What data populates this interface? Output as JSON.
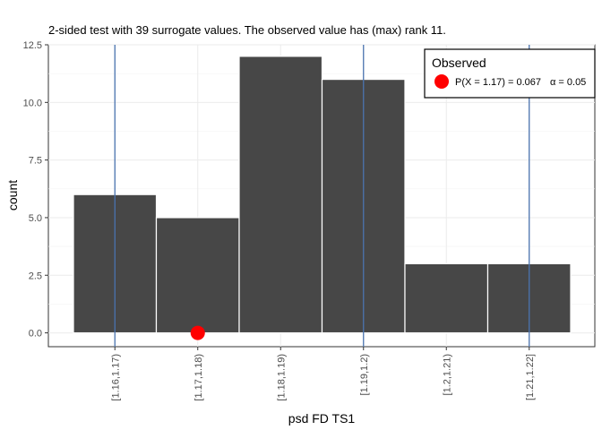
{
  "chart_data": {
    "type": "bar",
    "title": "2-sided test with 39 surrogate values. The observed value has (max) rank 11.",
    "xlabel": "psd FD TS1",
    "ylabel": "count",
    "categories": [
      "[1.16,1.17)",
      "[1.17,1.18)",
      "[1.18,1.19)",
      "[1.19,1.2)",
      "[1.2,1.21)",
      "[1.21,1.22]"
    ],
    "values": [
      6,
      5,
      12,
      11,
      3,
      3
    ],
    "ylim": [
      -0.6,
      12.5
    ],
    "yticks": [
      0.0,
      2.5,
      5.0,
      7.5,
      10.0,
      12.5
    ],
    "ytick_labels": [
      "0.0",
      "2.5",
      "5.0",
      "7.5",
      "10.0",
      "12.5"
    ],
    "bar_color": "#474747",
    "bar_edge_color": "#ffffff",
    "vertical_lines": {
      "color": "#4a74b0",
      "at_categories": [
        "[1.16,1.17)",
        "[1.19,1.2)",
        "[1.21,1.22]"
      ]
    },
    "observed_point": {
      "category": "[1.17,1.18)",
      "y": 0,
      "color": "#ff0000"
    },
    "grid": true,
    "legend": {
      "title": "Observed",
      "position": "top-right",
      "text_main": "P(X = 1.17) = 0.067",
      "text_alpha": "α = 0.05"
    }
  }
}
